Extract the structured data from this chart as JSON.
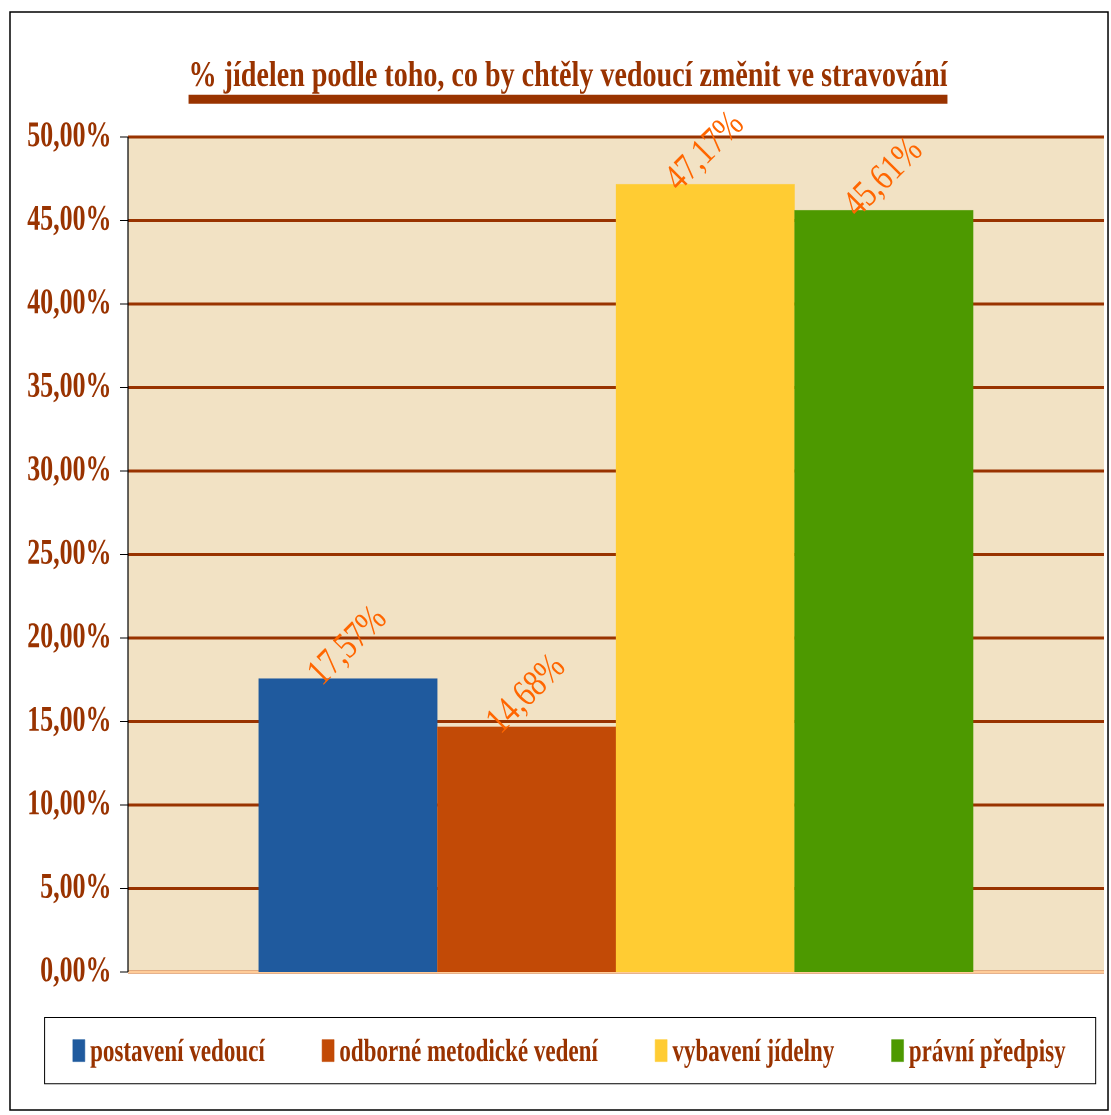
{
  "chart_data": {
    "type": "bar",
    "title": "% jídelen podle toho, co by chtěly vedoucí změnit ve stravování",
    "categories": [
      null
    ],
    "series": [
      {
        "name": "postavení vedoucí",
        "color": "#1f5a9e",
        "values": [
          17.57
        ],
        "value_labels": [
          "17,57%"
        ]
      },
      {
        "name": "odborné metodické vedení",
        "color": "#c24a06",
        "values": [
          14.68
        ],
        "value_labels": [
          "14,68%"
        ]
      },
      {
        "name": "vybavení jídelny",
        "color": "#ffcc33",
        "values": [
          47.17
        ],
        "value_labels": [
          "47,17%"
        ]
      },
      {
        "name": "právní předpisy",
        "color": "#4d9900",
        "values": [
          45.61
        ],
        "value_labels": [
          "45,61%"
        ]
      }
    ],
    "ylim": [
      0,
      50
    ],
    "yticks": [
      {
        "value": 0,
        "label": "0,00%"
      },
      {
        "value": 5,
        "label": "5,00%"
      },
      {
        "value": 10,
        "label": "10,00%"
      },
      {
        "value": 15,
        "label": "15,00%"
      },
      {
        "value": 20,
        "label": "20,00%"
      },
      {
        "value": 25,
        "label": "25,00%"
      },
      {
        "value": 30,
        "label": "30,00%"
      },
      {
        "value": 35,
        "label": "35,00%"
      },
      {
        "value": 40,
        "label": "40,00%"
      },
      {
        "value": 45,
        "label": "45,00%"
      },
      {
        "value": 50,
        "label": "50,00%"
      }
    ],
    "grid": "y",
    "legend": "bottom"
  }
}
